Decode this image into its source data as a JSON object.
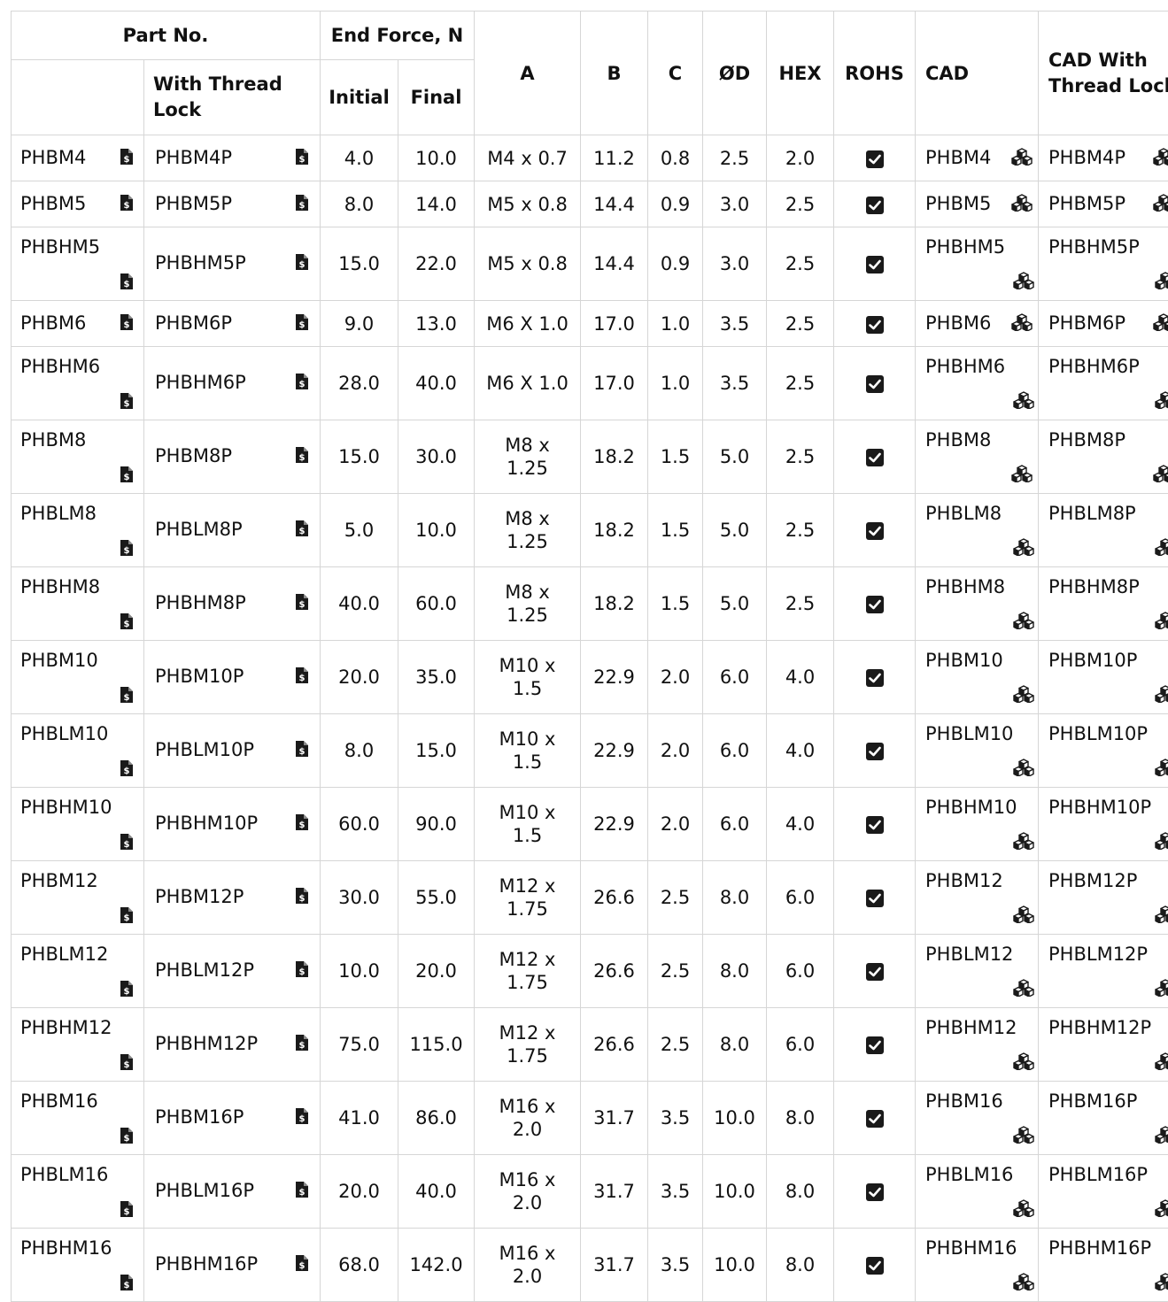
{
  "headers": {
    "part_no": "Part No.",
    "with_thread_lock": "With Thread Lock",
    "end_force": "End Force, N",
    "initial": "Initial",
    "final": "Final",
    "a": "A",
    "b": "B",
    "c": "C",
    "od": "ØD",
    "hex": "HEX",
    "rohs": "ROHS",
    "cad": "CAD",
    "cad_with_thread_lock": "CAD With Thread Lock"
  },
  "icons": {
    "document": "price-document-icon",
    "cad": "cubes-icon",
    "rohs": "checkbox-checked-icon"
  },
  "rows": [
    {
      "part": "PHBM4",
      "tl": "PHBM4P",
      "initial": "4.0",
      "final": "10.0",
      "a": "M4 x 0.7",
      "b": "11.2",
      "c": "0.8",
      "od": "2.5",
      "hex": "2.0",
      "rohs": true,
      "cad": "PHBM4",
      "cad_tl": "PHBM4P"
    },
    {
      "part": "PHBM5",
      "tl": "PHBM5P",
      "initial": "8.0",
      "final": "14.0",
      "a": "M5 x 0.8",
      "b": "14.4",
      "c": "0.9",
      "od": "3.0",
      "hex": "2.5",
      "rohs": true,
      "cad": "PHBM5",
      "cad_tl": "PHBM5P"
    },
    {
      "part": "PHBHM5",
      "tl": "PHBHM5P",
      "initial": "15.0",
      "final": "22.0",
      "a": "M5 x 0.8",
      "b": "14.4",
      "c": "0.9",
      "od": "3.0",
      "hex": "2.5",
      "rohs": true,
      "cad": "PHBHM5",
      "cad_tl": "PHBHM5P"
    },
    {
      "part": "PHBM6",
      "tl": "PHBM6P",
      "initial": "9.0",
      "final": "13.0",
      "a": "M6 X 1.0",
      "b": "17.0",
      "c": "1.0",
      "od": "3.5",
      "hex": "2.5",
      "rohs": true,
      "cad": "PHBM6",
      "cad_tl": "PHBM6P"
    },
    {
      "part": "PHBHM6",
      "tl": "PHBHM6P",
      "initial": "28.0",
      "final": "40.0",
      "a": "M6 X 1.0",
      "b": "17.0",
      "c": "1.0",
      "od": "3.5",
      "hex": "2.5",
      "rohs": true,
      "cad": "PHBHM6",
      "cad_tl": "PHBHM6P"
    },
    {
      "part": "PHBM8",
      "tl": "PHBM8P",
      "initial": "15.0",
      "final": "30.0",
      "a": "M8 x 1.25",
      "b": "18.2",
      "c": "1.5",
      "od": "5.0",
      "hex": "2.5",
      "rohs": true,
      "cad": "PHBM8",
      "cad_tl": "PHBM8P"
    },
    {
      "part": "PHBLM8",
      "tl": "PHBLM8P",
      "initial": "5.0",
      "final": "10.0",
      "a": "M8 x 1.25",
      "b": "18.2",
      "c": "1.5",
      "od": "5.0",
      "hex": "2.5",
      "rohs": true,
      "cad": "PHBLM8",
      "cad_tl": "PHBLM8P"
    },
    {
      "part": "PHBHM8",
      "tl": "PHBHM8P",
      "initial": "40.0",
      "final": "60.0",
      "a": "M8 x 1.25",
      "b": "18.2",
      "c": "1.5",
      "od": "5.0",
      "hex": "2.5",
      "rohs": true,
      "cad": "PHBHM8",
      "cad_tl": "PHBHM8P"
    },
    {
      "part": "PHBM10",
      "tl": "PHBM10P",
      "initial": "20.0",
      "final": "35.0",
      "a": "M10 x 1.5",
      "b": "22.9",
      "c": "2.0",
      "od": "6.0",
      "hex": "4.0",
      "rohs": true,
      "cad": "PHBM10",
      "cad_tl": "PHBM10P"
    },
    {
      "part": "PHBLM10",
      "tl": "PHBLM10P",
      "initial": "8.0",
      "final": "15.0",
      "a": "M10 x 1.5",
      "b": "22.9",
      "c": "2.0",
      "od": "6.0",
      "hex": "4.0",
      "rohs": true,
      "cad": "PHBLM10",
      "cad_tl": "PHBLM10P"
    },
    {
      "part": "PHBHM10",
      "tl": "PHBHM10P",
      "initial": "60.0",
      "final": "90.0",
      "a": "M10 x 1.5",
      "b": "22.9",
      "c": "2.0",
      "od": "6.0",
      "hex": "4.0",
      "rohs": true,
      "cad": "PHBHM10",
      "cad_tl": "PHBHM10P"
    },
    {
      "part": "PHBM12",
      "tl": "PHBM12P",
      "initial": "30.0",
      "final": "55.0",
      "a": "M12 x 1.75",
      "b": "26.6",
      "c": "2.5",
      "od": "8.0",
      "hex": "6.0",
      "rohs": true,
      "cad": "PHBM12",
      "cad_tl": "PHBM12P"
    },
    {
      "part": "PHBLM12",
      "tl": "PHBLM12P",
      "initial": "10.0",
      "final": "20.0",
      "a": "M12 x 1.75",
      "b": "26.6",
      "c": "2.5",
      "od": "8.0",
      "hex": "6.0",
      "rohs": true,
      "cad": "PHBLM12",
      "cad_tl": "PHBLM12P"
    },
    {
      "part": "PHBHM12",
      "tl": "PHBHM12P",
      "initial": "75.0",
      "final": "115.0",
      "a": "M12 x 1.75",
      "b": "26.6",
      "c": "2.5",
      "od": "8.0",
      "hex": "6.0",
      "rohs": true,
      "cad": "PHBHM12",
      "cad_tl": "PHBHM12P"
    },
    {
      "part": "PHBM16",
      "tl": "PHBM16P",
      "initial": "41.0",
      "final": "86.0",
      "a": "M16 x 2.0",
      "b": "31.7",
      "c": "3.5",
      "od": "10.0",
      "hex": "8.0",
      "rohs": true,
      "cad": "PHBM16",
      "cad_tl": "PHBM16P"
    },
    {
      "part": "PHBLM16",
      "tl": "PHBLM16P",
      "initial": "20.0",
      "final": "40.0",
      "a": "M16 x 2.0",
      "b": "31.7",
      "c": "3.5",
      "od": "10.0",
      "hex": "8.0",
      "rohs": true,
      "cad": "PHBLM16",
      "cad_tl": "PHBLM16P"
    },
    {
      "part": "PHBHM16",
      "tl": "PHBHM16P",
      "initial": "68.0",
      "final": "142.0",
      "a": "M16 x 2.0",
      "b": "31.7",
      "c": "3.5",
      "od": "10.0",
      "hex": "8.0",
      "rohs": true,
      "cad": "PHBHM16",
      "cad_tl": "PHBHM16P"
    }
  ]
}
